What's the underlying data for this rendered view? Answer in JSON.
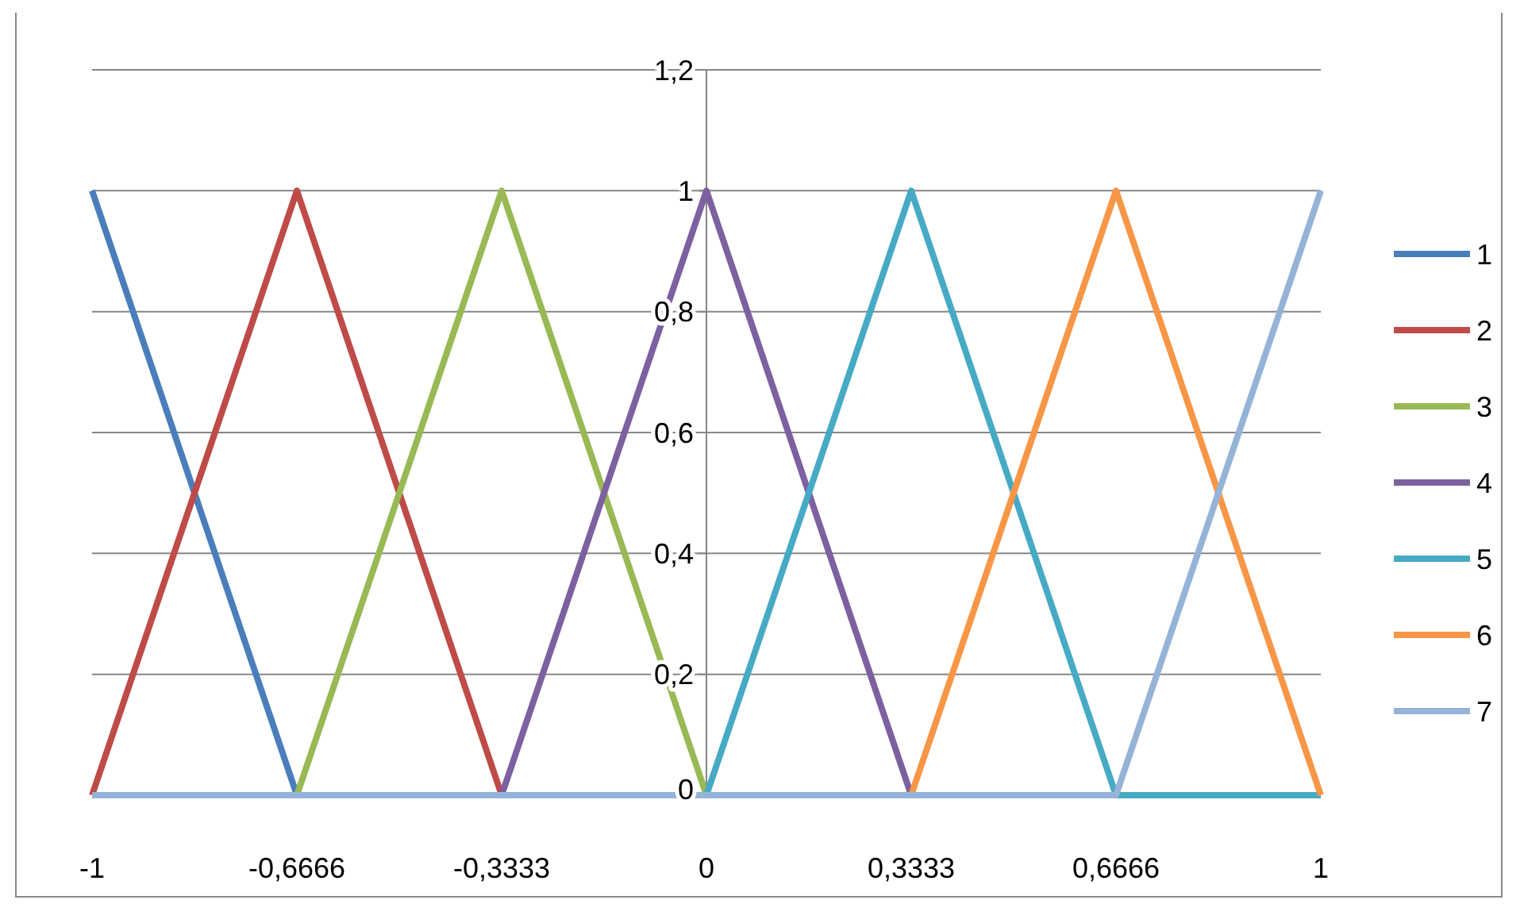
{
  "chart_data": {
    "type": "line",
    "x": [
      -1,
      -0.6666,
      -0.3333,
      0,
      0.3333,
      0.6666,
      1
    ],
    "series": [
      {
        "name": "1",
        "color": "#4a7ebb",
        "values": [
          1,
          0,
          null,
          null,
          null,
          null,
          null
        ]
      },
      {
        "name": "2",
        "color": "#be4b48",
        "values": [
          0,
          1,
          0,
          null,
          null,
          null,
          null
        ]
      },
      {
        "name": "3",
        "color": "#98b954",
        "values": [
          null,
          0,
          1,
          0,
          null,
          null,
          null
        ]
      },
      {
        "name": "4",
        "color": "#7d60a0",
        "values": [
          null,
          null,
          0,
          1,
          0,
          null,
          null
        ]
      },
      {
        "name": "5",
        "color": "#46aac5",
        "values": [
          null,
          null,
          null,
          0,
          1,
          0,
          0
        ]
      },
      {
        "name": "6",
        "color": "#f79646",
        "values": [
          null,
          null,
          null,
          null,
          0,
          1,
          0
        ]
      },
      {
        "name": "7",
        "color": "#95b3d7",
        "values": [
          0,
          0,
          0,
          0,
          0,
          0,
          1
        ]
      }
    ],
    "xlim": [
      -1,
      1
    ],
    "xticks": [
      -1,
      {
        "value": -0.6666,
        "label": "-0,6666"
      },
      {
        "value": -0.3333,
        "label": "-0,3333"
      },
      0,
      {
        "value": 0.3333,
        "label": "0,3333"
      },
      {
        "value": 0.6666,
        "label": "0,6666"
      },
      1
    ],
    "ylim": [
      0,
      1.2
    ],
    "yticks": [
      0,
      {
        "value": 0.2,
        "label": "0,2"
      },
      {
        "value": 0.4,
        "label": "0,4"
      },
      {
        "value": 0.6,
        "label": "0,6"
      },
      {
        "value": 0.8,
        "label": "0,8"
      },
      1,
      {
        "value": 1.2,
        "label": "1,2"
      }
    ],
    "grid": "y",
    "legend": "right",
    "marker": "none",
    "line_style": "solid"
  }
}
